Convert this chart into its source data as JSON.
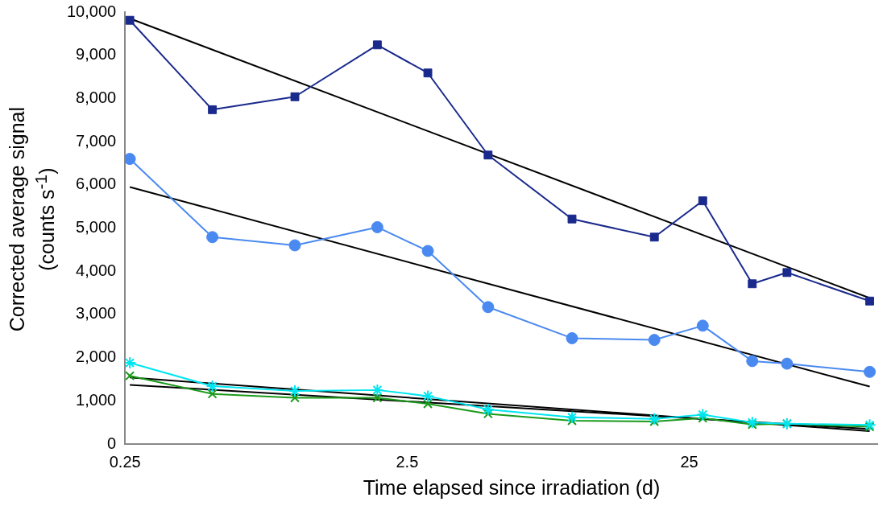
{
  "chart_data": {
    "type": "line",
    "xlabel": "Time elapsed since irradiation (d)",
    "ylabel": "Corrected average signal\n(counts s$^{-1}$)",
    "log": "x",
    "x": [
      0.26,
      0.51,
      1.0,
      1.96,
      2.96,
      4.84,
      9.6,
      18.8,
      27.9,
      41.8,
      55.5,
      109
    ],
    "xlim": [
      0.25,
      116
    ],
    "xticks": [
      0.25,
      2.5,
      25
    ],
    "ylim": [
      0,
      10000
    ],
    "yticks": [
      {
        "value": 0,
        "label": "0"
      },
      {
        "value": 1000,
        "label": "1,000"
      },
      {
        "value": 2000,
        "label": "2,000"
      },
      {
        "value": 3000,
        "label": "3,000"
      },
      {
        "value": 4000,
        "label": "4,000"
      },
      {
        "value": 5000,
        "label": "5,000"
      },
      {
        "value": 6000,
        "label": "6,000"
      },
      {
        "value": 7000,
        "label": "7,000"
      },
      {
        "value": 8000,
        "label": "8,000"
      },
      {
        "value": 9000,
        "label": "9,000"
      },
      {
        "value": 10000,
        "label": "10,000"
      }
    ],
    "grid": false,
    "legend": false,
    "series": [
      {
        "color": "#1a2a8c",
        "marker": "square",
        "values": [
          9810,
          7740,
          8040,
          9240,
          8590,
          6690,
          5210,
          4790,
          5630,
          3710,
          3970,
          3310
        ]
      },
      {
        "color": "#4a8af0",
        "marker": "circle",
        "values": [
          6600,
          4790,
          4600,
          5020,
          4470,
          3170,
          2450,
          2410,
          2740,
          1920,
          1860,
          1670
        ]
      },
      {
        "color": "#00e5f0",
        "marker": "cross",
        "values": [
          1880,
          1340,
          1230,
          1250,
          1110,
          800,
          620,
          580,
          680,
          500,
          470,
          440
        ]
      },
      {
        "color": "#1a9a1a",
        "marker": "cross",
        "values": [
          1580,
          1160,
          1070,
          1070,
          930,
          700,
          540,
          520,
          600,
          450,
          470,
          400
        ]
      },
      {
        "type": "line",
        "color": "#000000",
        "marker": "none",
        "values": [
          9850,
          null,
          null,
          null,
          null,
          null,
          null,
          null,
          null,
          null,
          null,
          3380
        ]
      },
      {
        "type": "line",
        "color": "#000000",
        "marker": "none",
        "values": [
          5950,
          null,
          null,
          null,
          null,
          null,
          null,
          null,
          null,
          null,
          null,
          1330
        ]
      },
      {
        "type": "line",
        "color": "#000000",
        "marker": "none",
        "values": [
          1370,
          null,
          null,
          null,
          null,
          null,
          null,
          null,
          null,
          null,
          null,
          350
        ]
      },
      {
        "type": "line",
        "color": "#000000",
        "marker": "none",
        "values": [
          1540,
          null,
          null,
          null,
          null,
          null,
          null,
          null,
          null,
          null,
          null,
          300
        ]
      }
    ]
  }
}
